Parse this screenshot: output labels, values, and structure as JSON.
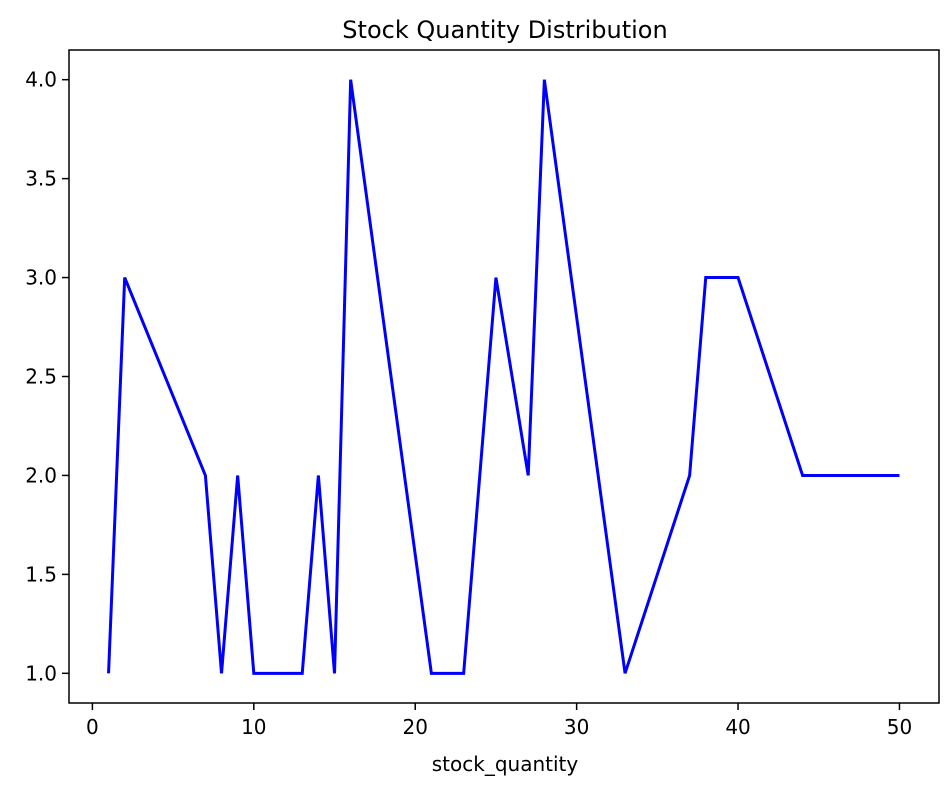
{
  "chart_data": {
    "type": "line",
    "title": "Stock Quantity Distribution",
    "xlabel": "stock_quantity",
    "ylabel": "",
    "xlim": [
      -1.45,
      52.45
    ],
    "ylim": [
      0.85,
      4.15
    ],
    "xticks": [
      0,
      10,
      20,
      30,
      40,
      50
    ],
    "yticks": [
      1.0,
      1.5,
      2.0,
      2.5,
      3.0,
      3.5,
      4.0
    ],
    "xtick_labels": [
      "0",
      "10",
      "20",
      "30",
      "40",
      "50"
    ],
    "ytick_labels": [
      "1.0",
      "1.5",
      "2.0",
      "2.5",
      "3.0",
      "3.5",
      "4.0"
    ],
    "grid": false,
    "legend": false,
    "series": [
      {
        "color": "#0000ff",
        "x": [
          1,
          2,
          7,
          8,
          9,
          10,
          13,
          14,
          15,
          16,
          21,
          23,
          25,
          27,
          28,
          33,
          37,
          38,
          40,
          44,
          50
        ],
        "y": [
          1,
          3,
          2,
          1,
          2,
          1,
          1,
          2,
          1,
          4,
          1,
          1,
          3,
          2,
          4,
          1,
          2,
          3,
          3,
          2,
          2
        ]
      }
    ]
  }
}
